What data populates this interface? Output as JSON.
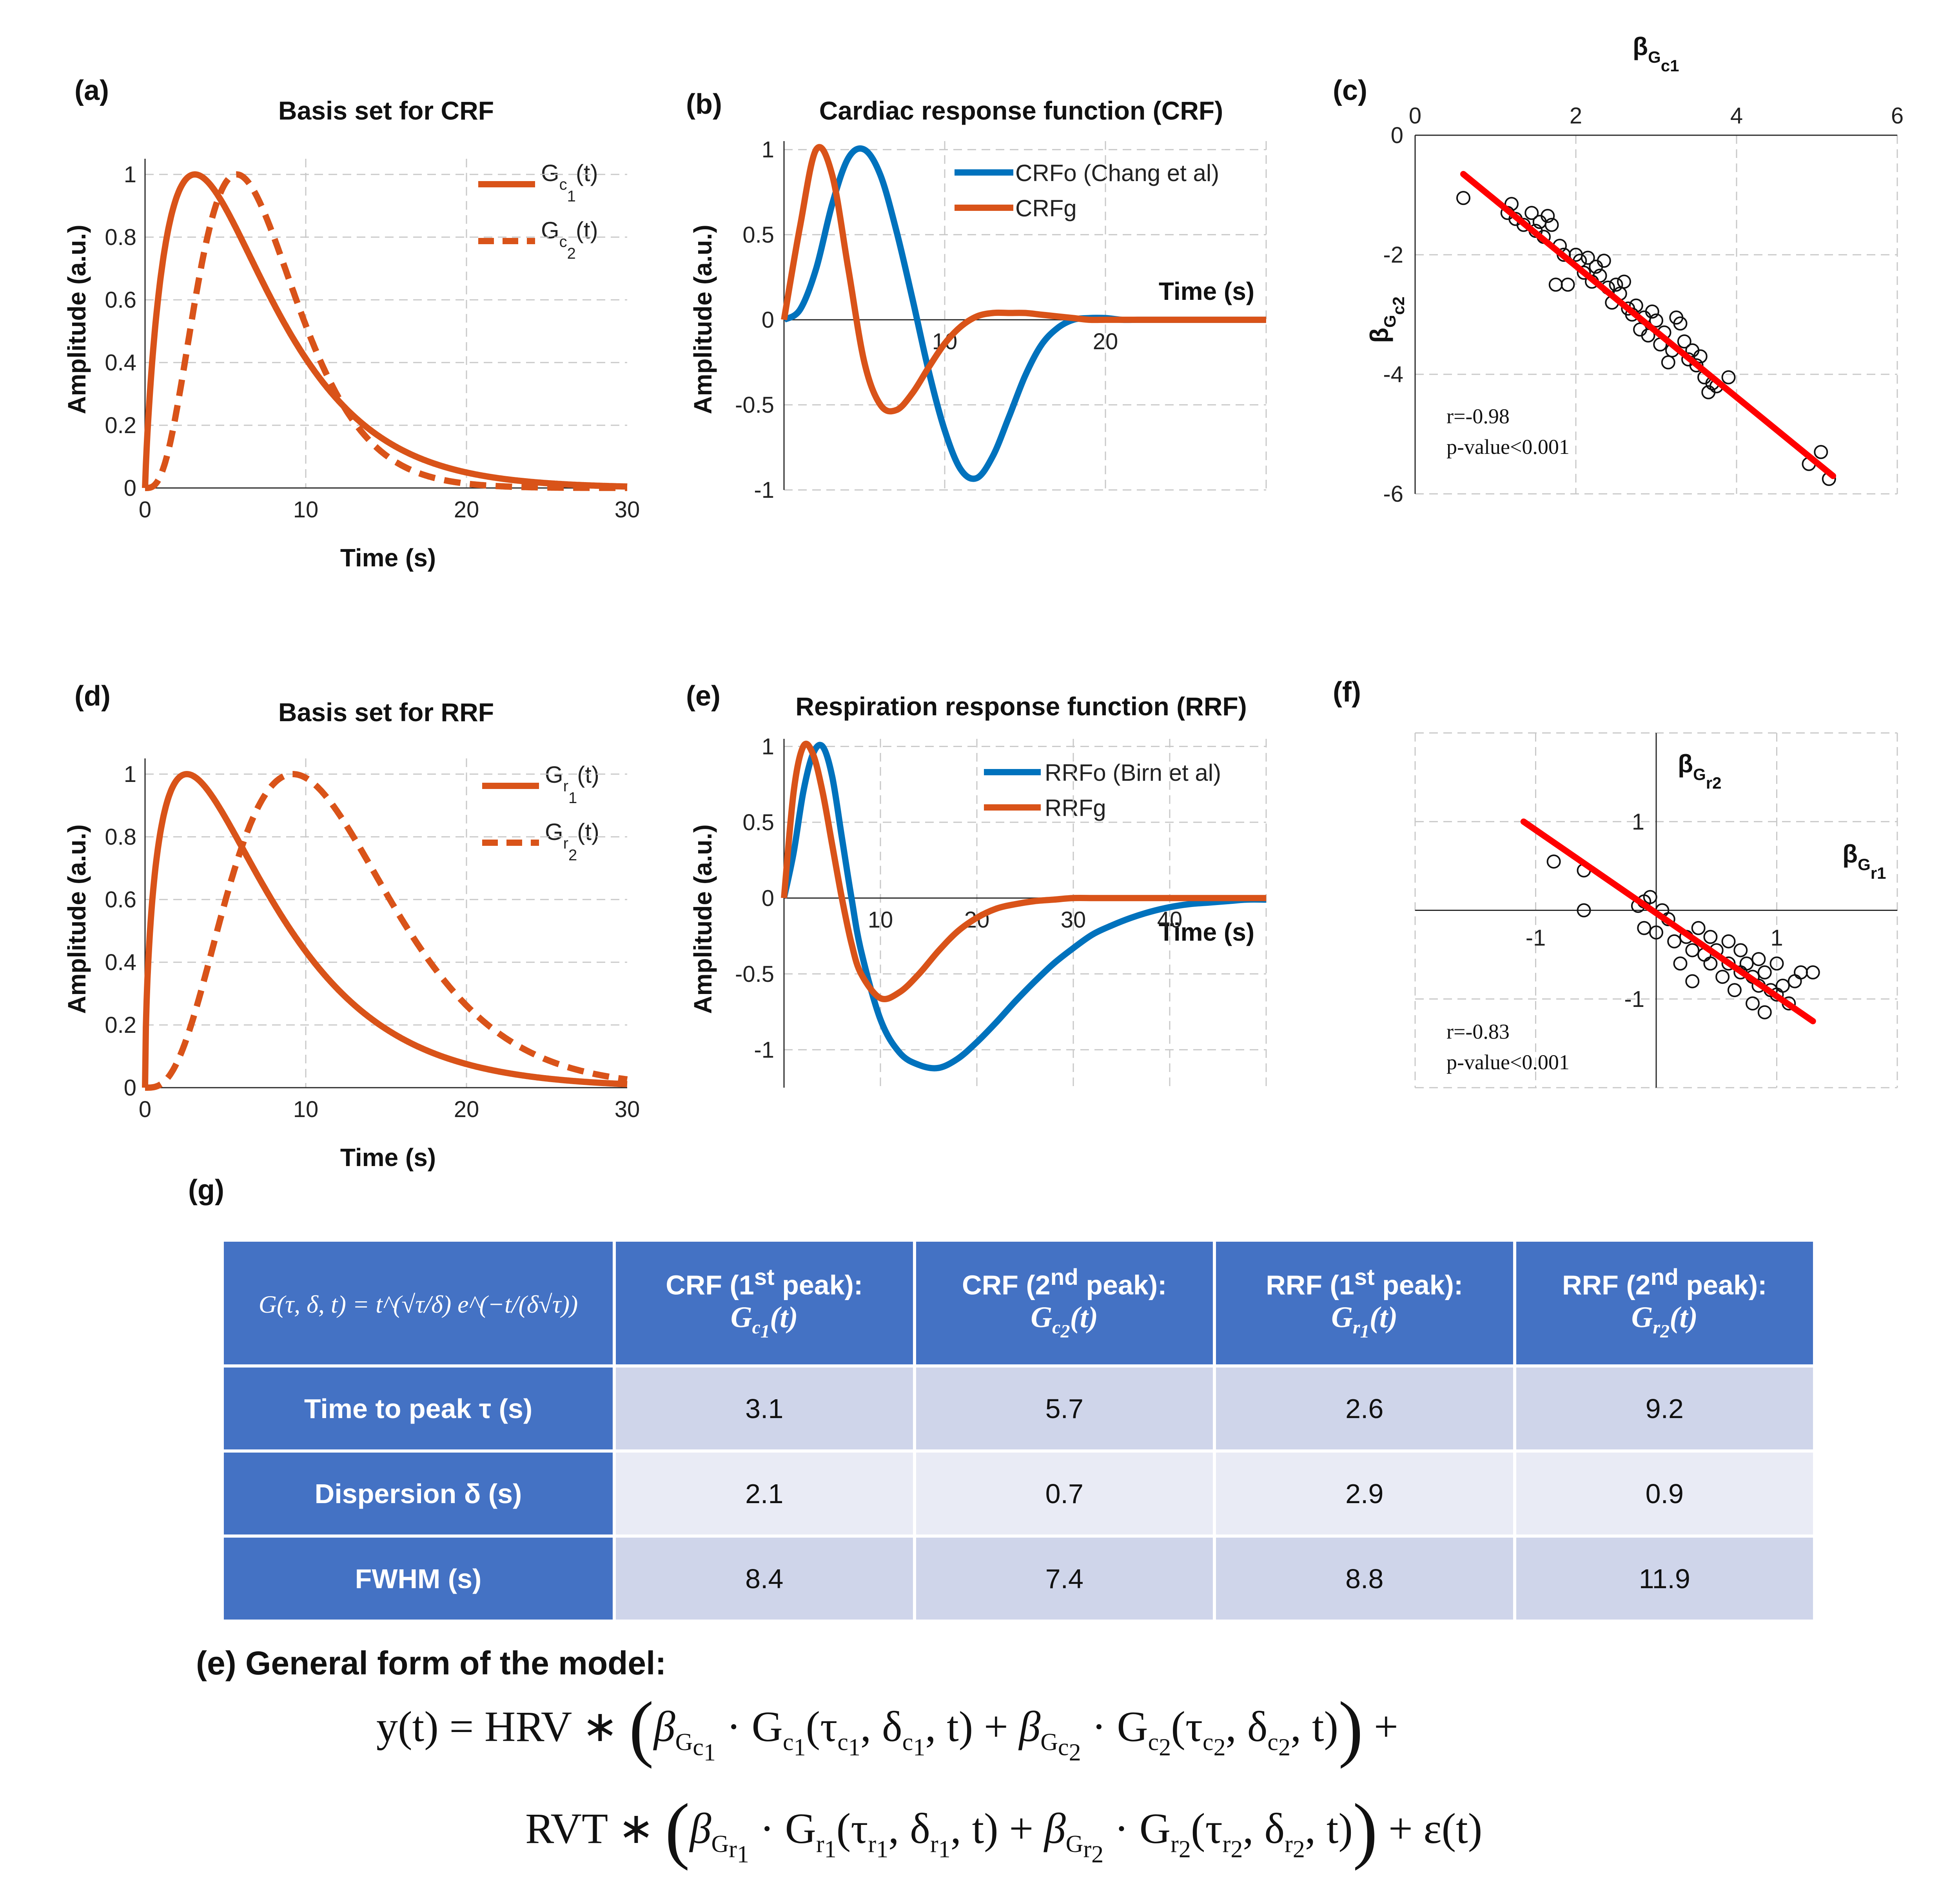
{
  "panels": {
    "a": {
      "label": "(a)",
      "title": "Basis set for CRF",
      "xlabel": "Time (s)",
      "ylabel": "Amplitude (a.u.)",
      "legend": [
        {
          "main": "G",
          "sub": "c",
          "subsub": "1",
          "tail": "(t)"
        },
        {
          "main": "G",
          "sub": "c",
          "subsub": "2",
          "tail": "(t)"
        }
      ]
    },
    "b": {
      "label": "(b)",
      "title": "Cardiac response function (CRF)",
      "xlabel": "Time (s)",
      "ylabel": "Amplitude (a.u.)",
      "legend": [
        "CRFo (Chang et al)",
        "CRFg"
      ]
    },
    "c": {
      "label": "(c)",
      "xlabel_main": "β",
      "xlabel_sub": "G",
      "xlabel_subsub": "c1",
      "ylabel_main": "β",
      "ylabel_sub": "G",
      "ylabel_subsub": "c2",
      "stat_r": "r=-0.98",
      "stat_p": "p-value<0.001"
    },
    "d": {
      "label": "(d)",
      "title": "Basis set for RRF",
      "xlabel": "Time (s)",
      "ylabel": "Amplitude (a.u.)",
      "legend": [
        {
          "main": "G",
          "sub": "r",
          "subsub": "1",
          "tail": "(t)"
        },
        {
          "main": "G",
          "sub": "r",
          "subsub": "2",
          "tail": "(t)"
        }
      ]
    },
    "e": {
      "label": "(e)",
      "title": "Respiration response function (RRF)",
      "xlabel": "Time (s)",
      "ylabel": "Amplitude (a.u.)",
      "legend": [
        "RRFo (Birn et al)",
        "RRFg"
      ]
    },
    "f": {
      "label": "(f)",
      "xlabel_main": "β",
      "xlabel_sub": "G",
      "xlabel_subsub": "r1",
      "ylabel_main": "β",
      "ylabel_sub": "G",
      "ylabel_subsub": "r2",
      "stat_r": "r=-0.83",
      "stat_p": "p-value<0.001"
    },
    "g": {
      "label": "(g)"
    }
  },
  "colors": {
    "orange": "#d95319",
    "blue": "#0072bd",
    "red": "#ff0000",
    "header": "#4472c4"
  },
  "chart_data": [
    {
      "id": "a",
      "type": "line",
      "title": "Basis set for CRF",
      "xlabel": "Time (s)",
      "ylabel": "Amplitude (a.u.)",
      "xlim": [
        0,
        30
      ],
      "ylim": [
        0,
        1.05
      ],
      "xticks": [
        "0",
        "10",
        "20",
        "30"
      ],
      "yticks": [
        "0",
        "0.2",
        "0.4",
        "0.6",
        "0.8",
        "1"
      ],
      "series": [
        {
          "name": "Gc1(t)",
          "tau": 3.1,
          "delta": 2.1,
          "style": "solid"
        },
        {
          "name": "Gc2(t)",
          "tau": 5.7,
          "delta": 0.7,
          "style": "dashed"
        }
      ]
    },
    {
      "id": "b",
      "type": "line",
      "title": "Cardiac response function (CRF)",
      "xlabel": "Time (s)",
      "ylabel": "Amplitude (a.u.)",
      "xlim": [
        0,
        30
      ],
      "ylim": [
        -1,
        1.05
      ],
      "xticks": [
        "10",
        "20"
      ],
      "yticks": [
        "-1",
        "-0.5",
        "0",
        "0.5",
        "1"
      ],
      "series": [
        {
          "name": "CRFo (Chang et al)",
          "x": [
            0,
            1,
            2,
            3,
            4,
            5,
            6,
            7,
            8,
            9,
            10,
            11,
            12,
            13,
            14,
            15,
            16,
            17,
            18,
            19,
            20,
            21,
            22,
            23,
            24,
            25,
            26,
            27,
            28,
            29,
            30
          ],
          "y": [
            0,
            0.06,
            0.3,
            0.68,
            0.95,
            1.0,
            0.85,
            0.52,
            0.12,
            -0.3,
            -0.65,
            -0.88,
            -0.93,
            -0.8,
            -0.57,
            -0.33,
            -0.15,
            -0.05,
            0,
            0.01,
            0.01,
            0,
            0,
            0,
            0,
            0,
            0,
            0,
            0,
            0,
            0
          ]
        },
        {
          "name": "CRFg",
          "x": [
            0,
            1,
            2,
            3,
            4,
            5,
            6,
            7,
            8,
            9,
            10,
            11,
            12,
            13,
            14,
            15,
            16,
            17,
            18,
            19,
            20,
            21,
            22,
            23,
            24,
            25,
            26,
            27,
            28,
            29,
            30
          ],
          "y": [
            0,
            0.55,
            1.0,
            0.85,
            0.3,
            -0.25,
            -0.5,
            -0.53,
            -0.43,
            -0.28,
            -0.14,
            -0.04,
            0.02,
            0.04,
            0.04,
            0.04,
            0.03,
            0.02,
            0.01,
            0,
            0,
            0,
            0,
            0,
            0,
            0,
            0,
            0,
            0,
            0,
            0
          ]
        }
      ]
    },
    {
      "id": "c",
      "type": "scatter",
      "xlabel": "βGc1",
      "ylabel": "βGc2",
      "xlim": [
        0,
        6
      ],
      "ylim": [
        -6,
        0
      ],
      "xticks": [
        "0",
        "2",
        "4",
        "6"
      ],
      "yticks": [
        "0",
        "-2",
        "-4",
        "-6"
      ],
      "points": [
        [
          0.6,
          -1.05
        ],
        [
          1.15,
          -1.3
        ],
        [
          1.2,
          -1.15
        ],
        [
          1.25,
          -1.4
        ],
        [
          1.35,
          -1.5
        ],
        [
          1.45,
          -1.3
        ],
        [
          1.5,
          -1.6
        ],
        [
          1.55,
          -1.45
        ],
        [
          1.6,
          -1.7
        ],
        [
          1.65,
          -1.35
        ],
        [
          1.7,
          -1.5
        ],
        [
          1.8,
          -1.85
        ],
        [
          1.75,
          -2.5
        ],
        [
          1.85,
          -2.0
        ],
        [
          1.9,
          -2.5
        ],
        [
          2.0,
          -2.0
        ],
        [
          2.05,
          -2.1
        ],
        [
          2.1,
          -2.3
        ],
        [
          2.15,
          -2.05
        ],
        [
          2.2,
          -2.45
        ],
        [
          2.25,
          -2.2
        ],
        [
          2.3,
          -2.35
        ],
        [
          2.35,
          -2.1
        ],
        [
          2.4,
          -2.55
        ],
        [
          2.45,
          -2.8
        ],
        [
          2.5,
          -2.5
        ],
        [
          2.55,
          -2.65
        ],
        [
          2.6,
          -2.45
        ],
        [
          2.65,
          -2.9
        ],
        [
          2.7,
          -3.0
        ],
        [
          2.75,
          -2.85
        ],
        [
          2.8,
          -3.25
        ],
        [
          2.85,
          -3.05
        ],
        [
          2.9,
          -3.35
        ],
        [
          2.95,
          -2.95
        ],
        [
          3.0,
          -3.1
        ],
        [
          3.05,
          -3.5
        ],
        [
          3.1,
          -3.3
        ],
        [
          3.15,
          -3.8
        ],
        [
          3.2,
          -3.6
        ],
        [
          3.25,
          -3.05
        ],
        [
          3.3,
          -3.15
        ],
        [
          3.35,
          -3.45
        ],
        [
          3.4,
          -3.75
        ],
        [
          3.45,
          -3.6
        ],
        [
          3.5,
          -3.85
        ],
        [
          3.55,
          -3.7
        ],
        [
          3.6,
          -4.05
        ],
        [
          3.65,
          -4.3
        ],
        [
          3.7,
          -4.15
        ],
        [
          3.75,
          -4.2
        ],
        [
          3.9,
          -4.05
        ],
        [
          4.9,
          -5.5
        ],
        [
          5.05,
          -5.3
        ],
        [
          5.15,
          -5.75
        ]
      ],
      "fit": {
        "x": [
          0.6,
          5.2
        ],
        "y": [
          -0.65,
          -5.7
        ]
      },
      "r": "-0.98",
      "p": "<0.001"
    },
    {
      "id": "d",
      "type": "line",
      "title": "Basis set for RRF",
      "xlabel": "Time (s)",
      "ylabel": "Amplitude (a.u.)",
      "xlim": [
        0,
        30
      ],
      "ylim": [
        0,
        1.05
      ],
      "xticks": [
        "0",
        "10",
        "20",
        "30"
      ],
      "yticks": [
        "0",
        "0.2",
        "0.4",
        "0.6",
        "0.8",
        "1"
      ],
      "series": [
        {
          "name": "Gr1(t)",
          "tau": 2.6,
          "delta": 2.9,
          "style": "solid"
        },
        {
          "name": "Gr2(t)",
          "tau": 9.2,
          "delta": 0.9,
          "style": "dashed"
        }
      ]
    },
    {
      "id": "e",
      "type": "line",
      "title": "Respiration response function (RRF)",
      "xlabel": "Time (s)",
      "ylabel": "Amplitude (a.u.)",
      "xlim": [
        0,
        50
      ],
      "ylim": [
        -1.25,
        1.05
      ],
      "xticks": [
        "10",
        "20",
        "30",
        "40"
      ],
      "yticks": [
        "-1",
        "-0.5",
        "0",
        "0.5",
        "1"
      ],
      "series": [
        {
          "name": "RRFo (Birn et al)",
          "x": [
            0,
            1,
            2,
            3,
            4,
            5,
            6,
            7,
            8,
            10,
            12,
            14,
            16,
            18,
            20,
            22,
            24,
            26,
            28,
            30,
            32,
            34,
            36,
            38,
            40,
            42,
            44,
            46,
            48,
            50
          ],
          "y": [
            0,
            0.3,
            0.7,
            0.95,
            1.0,
            0.8,
            0.4,
            0.0,
            -0.35,
            -0.8,
            -1.02,
            -1.1,
            -1.12,
            -1.06,
            -0.95,
            -0.82,
            -0.68,
            -0.55,
            -0.43,
            -0.33,
            -0.24,
            -0.18,
            -0.13,
            -0.09,
            -0.06,
            -0.04,
            -0.03,
            -0.02,
            -0.01,
            -0.01
          ]
        },
        {
          "name": "RRFg",
          "x": [
            0,
            1,
            2,
            3,
            4,
            5,
            6,
            7,
            8,
            10,
            12,
            14,
            16,
            18,
            20,
            22,
            24,
            26,
            28,
            30,
            32,
            34,
            36,
            38,
            40,
            42,
            44,
            46,
            48,
            50
          ],
          "y": [
            0,
            0.7,
            1.0,
            0.95,
            0.7,
            0.35,
            0.0,
            -0.3,
            -0.5,
            -0.66,
            -0.62,
            -0.5,
            -0.35,
            -0.22,
            -0.13,
            -0.07,
            -0.04,
            -0.02,
            -0.01,
            0,
            0,
            0,
            0,
            0,
            0,
            0,
            0,
            0,
            0,
            0
          ]
        }
      ]
    },
    {
      "id": "f",
      "type": "scatter",
      "xlabel": "βGr1",
      "ylabel": "βGr2",
      "xlim": [
        -2,
        2
      ],
      "ylim": [
        -2,
        2
      ],
      "xticks": [
        "-1",
        "1"
      ],
      "yticks": [
        "1",
        "-1"
      ],
      "points": [
        [
          -0.85,
          0.55
        ],
        [
          -0.6,
          0.45
        ],
        [
          -0.6,
          0.0
        ],
        [
          -0.15,
          0.05
        ],
        [
          -0.1,
          0.1
        ],
        [
          -0.05,
          0.15
        ],
        [
          -0.1,
          -0.2
        ],
        [
          0.0,
          -0.25
        ],
        [
          0.05,
          0.0
        ],
        [
          0.1,
          -0.1
        ],
        [
          0.15,
          -0.35
        ],
        [
          0.2,
          -0.6
        ],
        [
          0.25,
          -0.3
        ],
        [
          0.3,
          -0.45
        ],
        [
          0.3,
          -0.8
        ],
        [
          0.35,
          -0.2
        ],
        [
          0.4,
          -0.5
        ],
        [
          0.45,
          -0.6
        ],
        [
          0.45,
          -0.3
        ],
        [
          0.5,
          -0.45
        ],
        [
          0.55,
          -0.75
        ],
        [
          0.6,
          -0.35
        ],
        [
          0.6,
          -0.6
        ],
        [
          0.65,
          -0.9
        ],
        [
          0.7,
          -0.7
        ],
        [
          0.7,
          -0.45
        ],
        [
          0.75,
          -0.6
        ],
        [
          0.8,
          -0.75
        ],
        [
          0.8,
          -1.05
        ],
        [
          0.85,
          -0.55
        ],
        [
          0.85,
          -0.85
        ],
        [
          0.9,
          -0.7
        ],
        [
          0.95,
          -0.9
        ],
        [
          1.0,
          -0.6
        ],
        [
          1.0,
          -0.95
        ],
        [
          1.05,
          -0.85
        ],
        [
          1.1,
          -1.05
        ],
        [
          1.15,
          -0.8
        ],
        [
          1.2,
          -0.7
        ],
        [
          0.9,
          -1.15
        ],
        [
          1.3,
          -0.7
        ]
      ],
      "fit": {
        "x": [
          -1.1,
          1.3
        ],
        "y": [
          1.0,
          -1.25
        ]
      },
      "r": "-0.83",
      "p": "<0.001"
    }
  ],
  "table": {
    "formula": "G(τ, δ, t) = t^(√τ/δ) e^(−t/(δ√τ))",
    "headers": [
      {
        "line1": "CRF (1",
        "sup": "st",
        "line1b": " peak):",
        "func": "G",
        "sub": "c",
        "subsub": "1",
        "tail": "(t)"
      },
      {
        "line1": "CRF (2",
        "sup": "nd",
        "line1b": " peak):",
        "func": "G",
        "sub": "c",
        "subsub": "2",
        "tail": "(t)"
      },
      {
        "line1": "RRF (1",
        "sup": "st",
        "line1b": " peak):",
        "func": "G",
        "sub": "r",
        "subsub": "1",
        "tail": "(t)"
      },
      {
        "line1": "RRF (2",
        "sup": "nd",
        "line1b": " peak):",
        "func": "G",
        "sub": "r",
        "subsub": "2",
        "tail": "(t)"
      }
    ],
    "rows": [
      {
        "label": "Time to peak τ (s)",
        "values": [
          "3.1",
          "5.7",
          "2.6",
          "9.2"
        ]
      },
      {
        "label": "Dispersion δ (s)",
        "values": [
          "2.1",
          "0.7",
          "2.9",
          "0.9"
        ]
      },
      {
        "label": "FWHM (s)",
        "values": [
          "8.4",
          "7.4",
          "8.8",
          "11.9"
        ]
      }
    ]
  },
  "model": {
    "title": "(e)   General form of the model:",
    "line1_lhs": "y(t) = HRV ∗",
    "line2_lhs": "RVT ∗",
    "plus": "+",
    "eps": "+ ε(t)"
  }
}
